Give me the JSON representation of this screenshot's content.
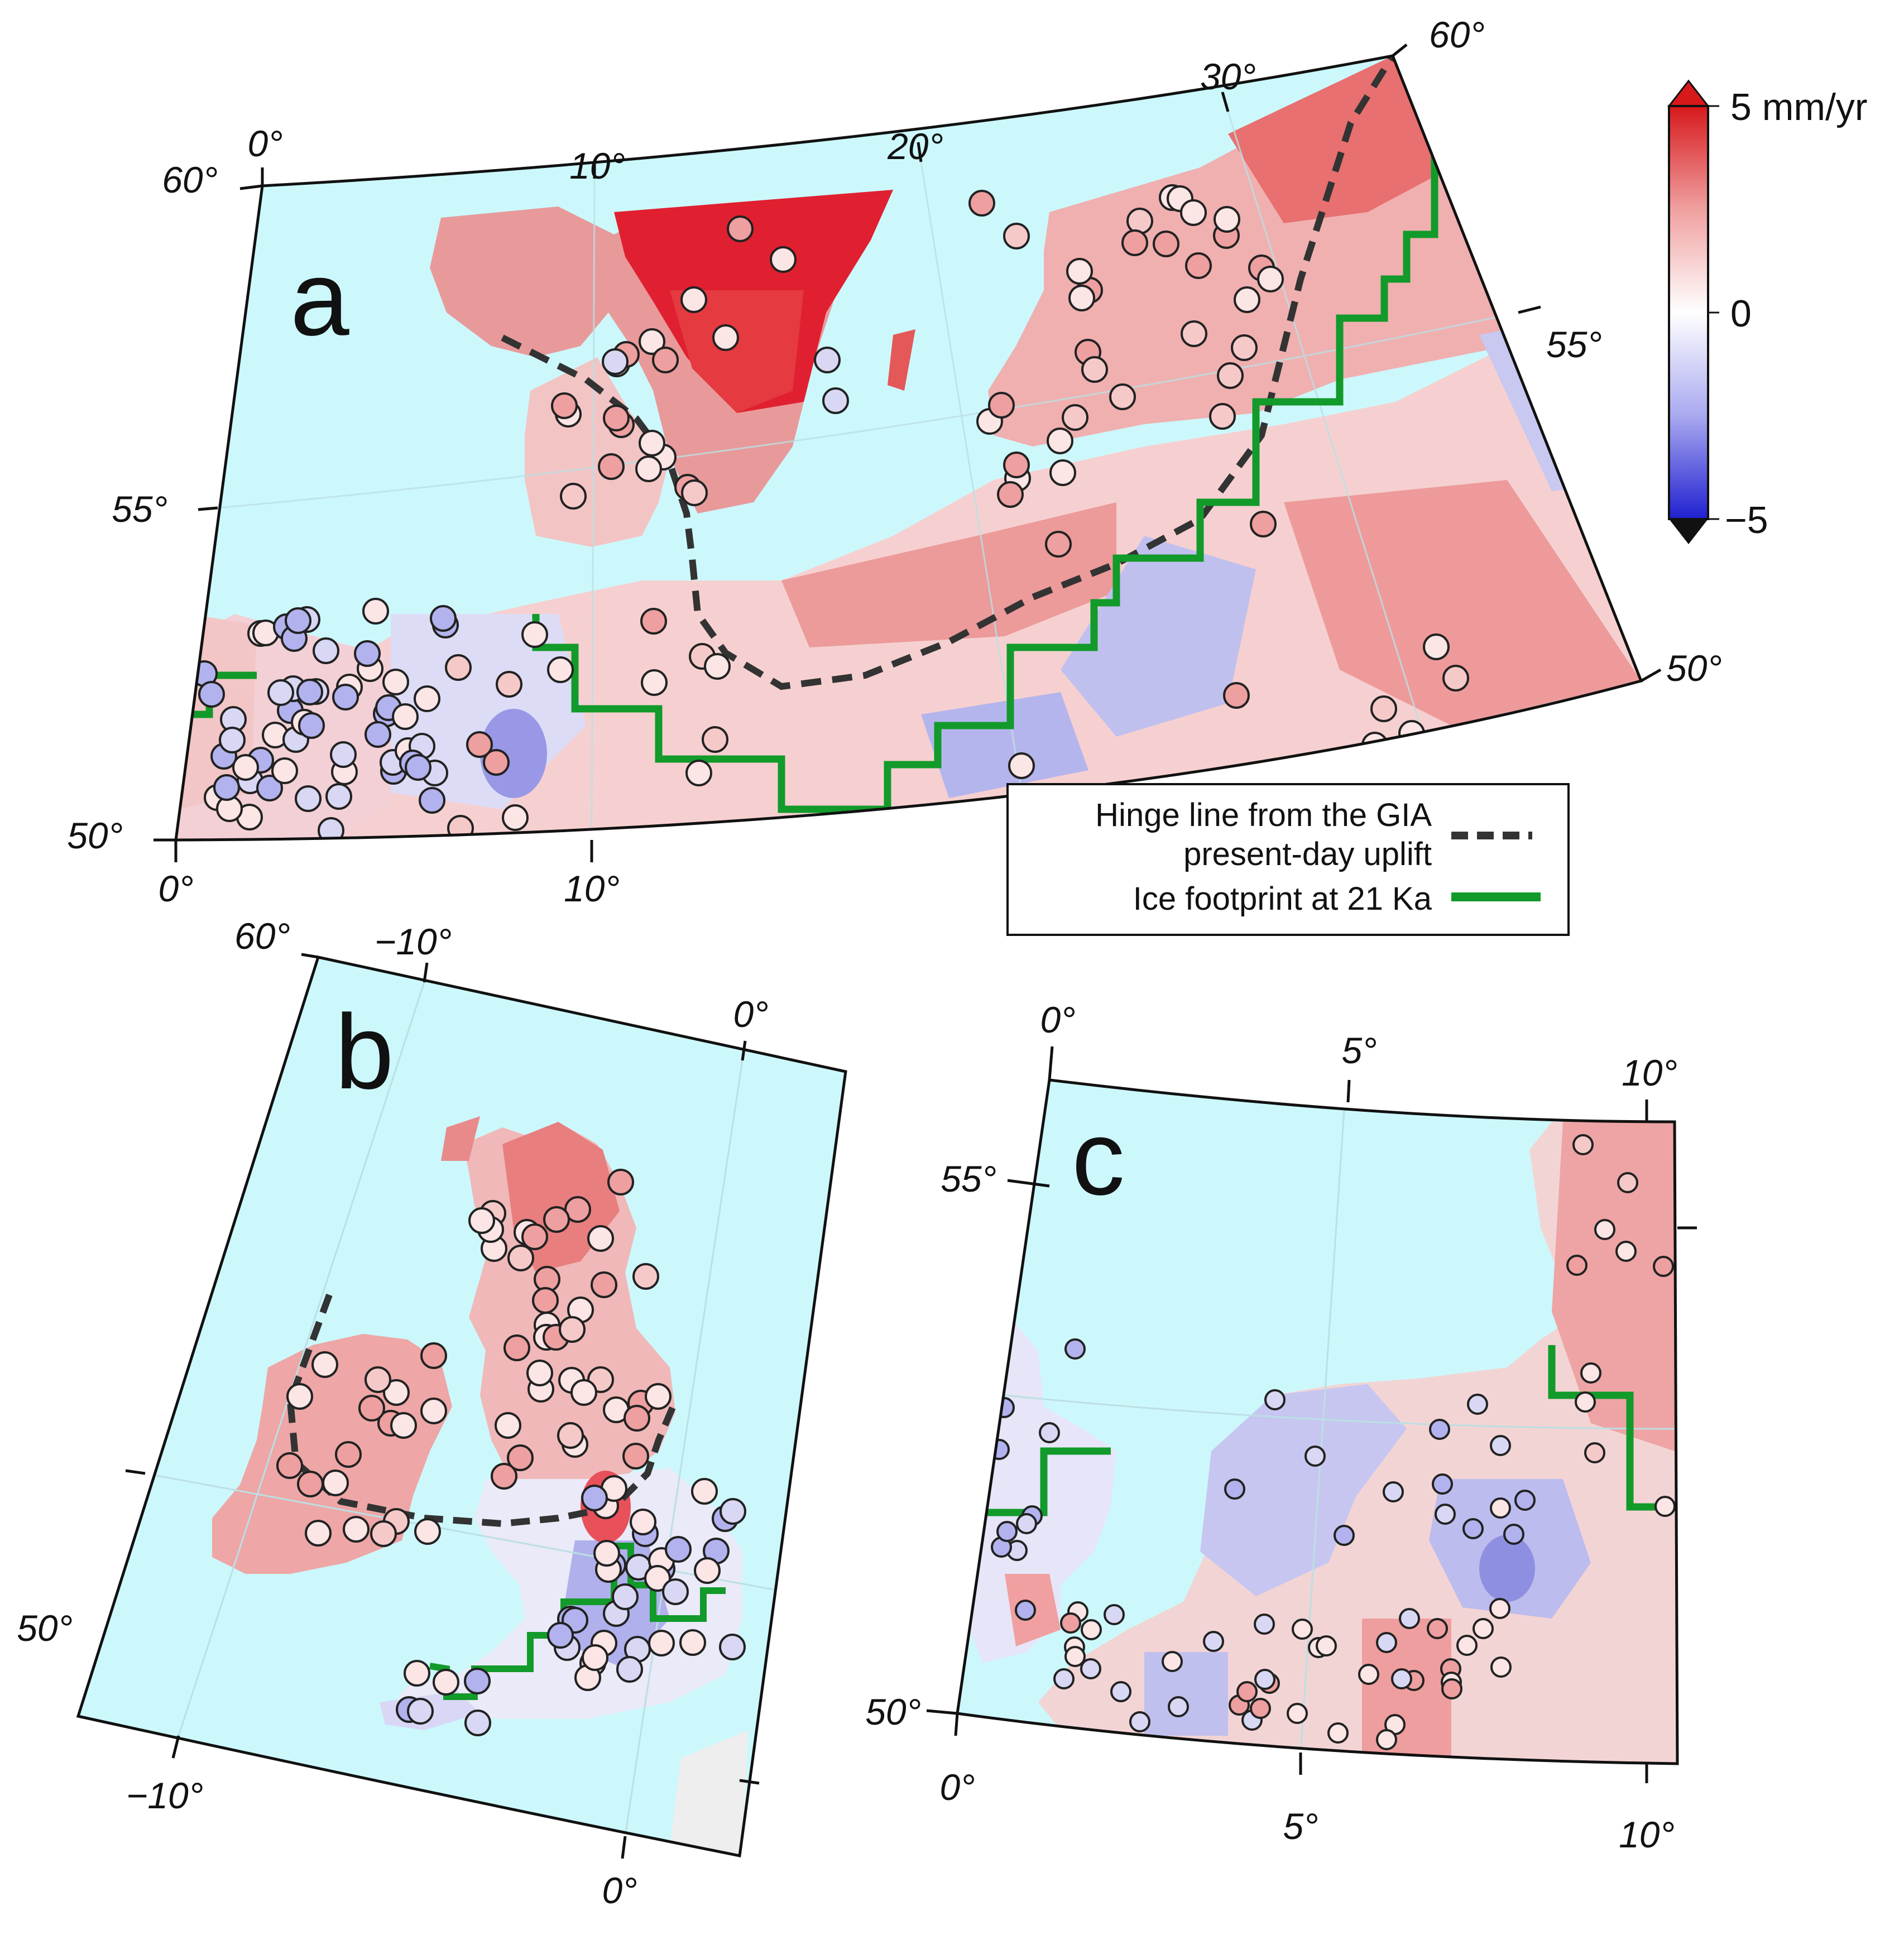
{
  "panels": [
    {
      "label": "a",
      "lon_ticks_top": [
        "0°",
        "10°",
        "20°",
        "30°"
      ],
      "lon_ticks_bottom": [
        "0°",
        "10°"
      ],
      "lat_ticks_left": [
        "60°",
        "55°",
        "50°"
      ],
      "lat_ticks_right": [
        "60°",
        "55°",
        "50°"
      ]
    },
    {
      "label": "b",
      "lon_ticks_top": [
        "−10°",
        "0°"
      ],
      "lon_ticks_bottom": [
        "−10°",
        "0°"
      ],
      "lat_ticks_left": [
        "60°",
        "50°"
      ]
    },
    {
      "label": "c",
      "lon_ticks_top": [
        "0°",
        "5°",
        "10°"
      ],
      "lon_ticks_bottom": [
        "0°",
        "5°",
        "10°"
      ],
      "lat_ticks_left": [
        "55°",
        "50°"
      ]
    }
  ],
  "legend": {
    "hinge_line": "Hinge line from the GIA present-day uplift",
    "hinge_line_1": "Hinge line from the GIA",
    "hinge_line_2": "present-day uplift",
    "ice_footprint": "Ice footprint at 21 Ka"
  },
  "colorbar": {
    "max_label": "5 mm/yr",
    "mid_label": "0",
    "min_label": "−5",
    "range_mm_per_yr": [
      -5,
      5
    ],
    "colors": {
      "positive": "#d7191c",
      "zero": "#ffffff",
      "negative": "#2b2bd6"
    }
  },
  "colors": {
    "ocean": "#ccf8fc",
    "uplift": "#e8908e",
    "strong_uplift": "#e01a2a",
    "subsidence": "#b8b8ee",
    "hinge_line": "#333333",
    "ice_footprint": "#129a2a"
  }
}
